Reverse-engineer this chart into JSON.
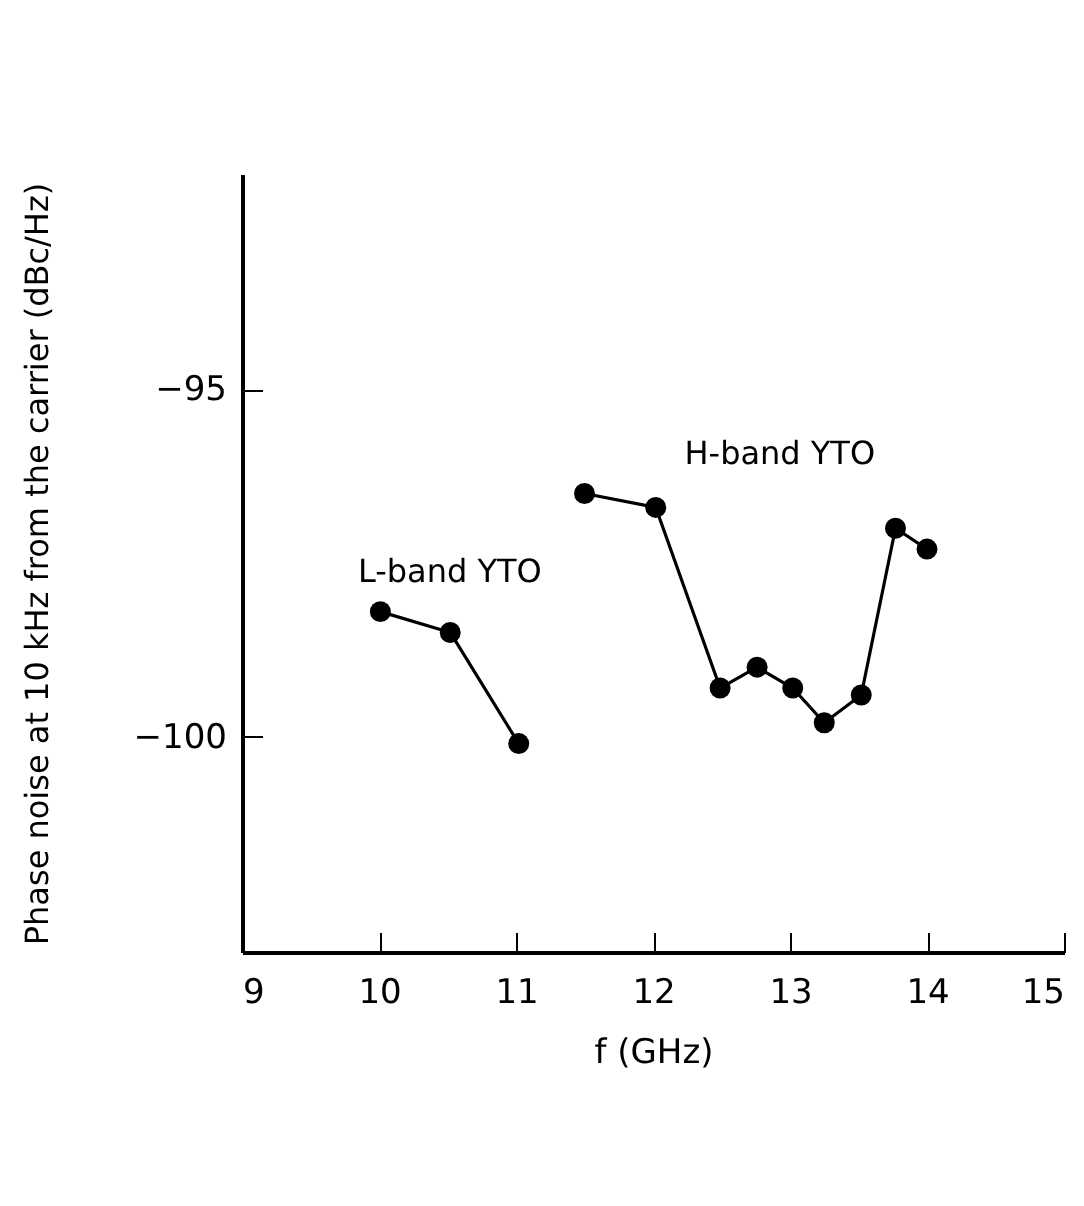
{
  "chart_data": {
    "type": "line",
    "xlabel": "f (GHz)",
    "ylabel": "Phase noise at 10 kHz from the carrier (dBc/Hz)",
    "xlim": [
      9,
      15
    ],
    "xticks": [
      9,
      10,
      11,
      12,
      13,
      14,
      15
    ],
    "ylim": [
      -103.1,
      -91.9
    ],
    "yticks": [
      -95,
      -100
    ],
    "grid": false,
    "marker": "circle",
    "line_style": "solid",
    "series": [
      {
        "name": "L-band YTO",
        "color": "#000000",
        "x": [
          10.01,
          10.52,
          11.02
        ],
        "values": [
          -98.2,
          -98.5,
          -100.1
        ]
      },
      {
        "name": "H-band YTO",
        "color": "#000000",
        "x": [
          11.5,
          12.02,
          12.49,
          12.76,
          13.02,
          13.25,
          13.52,
          13.77,
          14.0
        ],
        "values": [
          -96.5,
          -96.7,
          -99.3,
          -99.0,
          -99.3,
          -99.8,
          -99.4,
          -97.0,
          -97.3
        ]
      }
    ]
  }
}
